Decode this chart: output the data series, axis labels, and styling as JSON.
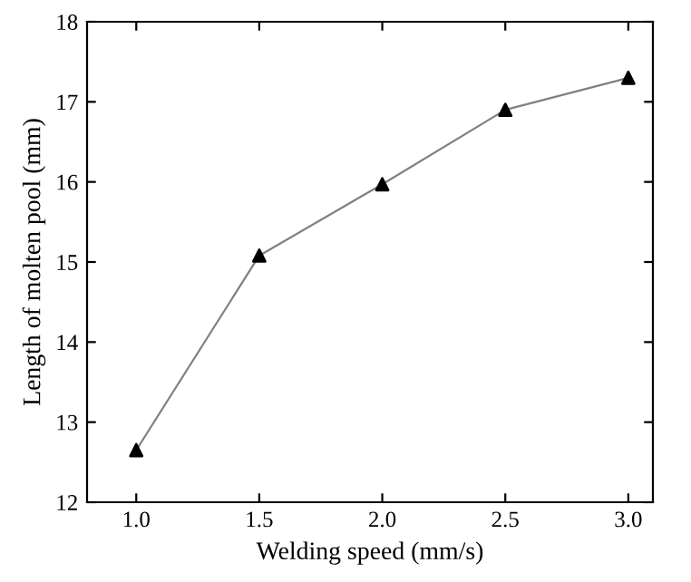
{
  "chart_data": {
    "type": "line",
    "xlabel": "Welding speed (mm/s)",
    "ylabel": "Length of molten pool (mm)",
    "x": [
      1.0,
      1.5,
      2.0,
      2.5,
      3.0
    ],
    "series": [
      {
        "color": "#808080",
        "values": [
          12.65,
          15.08,
          15.97,
          16.9,
          17.3
        ]
      }
    ],
    "marker": "triangle",
    "line_style": "solid",
    "xlim": [
      0.8,
      3.1
    ],
    "xticks": [
      {
        "value": 1.0,
        "label": "1.0"
      },
      {
        "value": 1.5,
        "label": "1.5"
      },
      {
        "value": 2.0,
        "label": "2.0"
      },
      {
        "value": 2.5,
        "label": "2.5"
      },
      {
        "value": 3.0,
        "label": "3.0"
      }
    ],
    "ylim": [
      12,
      18
    ],
    "yticks": [
      12,
      13,
      14,
      15,
      16,
      17,
      18
    ]
  }
}
